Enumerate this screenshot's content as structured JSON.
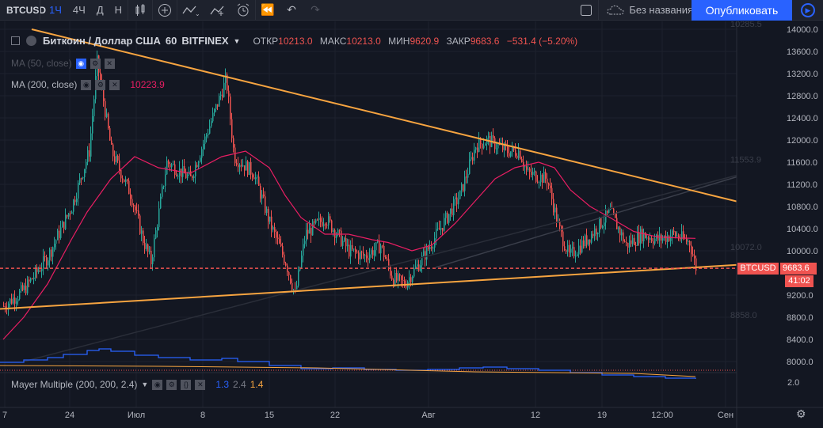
{
  "toolbar": {
    "symbol": "BTCUSD",
    "intervals": [
      "1Ч",
      "4Ч",
      "Д",
      "Н"
    ],
    "active_interval": "1Ч",
    "layout_name": "Без названия",
    "publish_label": "Опубликовать"
  },
  "legend": {
    "title": "Биткоин / Доллар США",
    "interval": "60",
    "exchange": "BITFINEX",
    "open_label": "ОТКР",
    "open": "10213.0",
    "high_label": "МАКС",
    "high": "10213.0",
    "low_label": "МИН",
    "low": "9620.9",
    "close_label": "ЗАКР",
    "close": "9683.6",
    "change": "−531.4 (−5.20%)"
  },
  "indicators": {
    "ma50": "MA (50, close)",
    "ma200": "MA (200, close)",
    "ma200_value": "10223.9",
    "mayer": "Mayer Multiple (200, 200, 2.4)",
    "mayer_values": [
      "1.3",
      "2.4",
      "1.4"
    ]
  },
  "price_axis": {
    "ticks": [
      "14000.0",
      "13600.0",
      "13200.0",
      "12800.0",
      "12400.0",
      "12000.0",
      "11600.0",
      "11200.0",
      "10800.0",
      "10400.0",
      "10000.0",
      "9200.0",
      "8800.0",
      "8400.0",
      "8000.0"
    ],
    "faded_labels": [
      "10285.5",
      "11553.9",
      "10072.0",
      "8858.0"
    ],
    "current_symbol": "BTCUSD",
    "current_price": "9683.6",
    "countdown": "41:02",
    "mayer_tick": "2.0"
  },
  "time_axis": {
    "ticks": [
      "7",
      "24",
      "Июл",
      "8",
      "15",
      "22",
      "Авг",
      "12",
      "19",
      "12:00",
      "Сен"
    ]
  },
  "colors": {
    "background": "#131722",
    "trendline": "#f7a440",
    "ma200": "#e91e63",
    "ma50": "#787b86",
    "up": "#26a69a",
    "down": "#ef5350",
    "accent": "#2962ff"
  }
}
